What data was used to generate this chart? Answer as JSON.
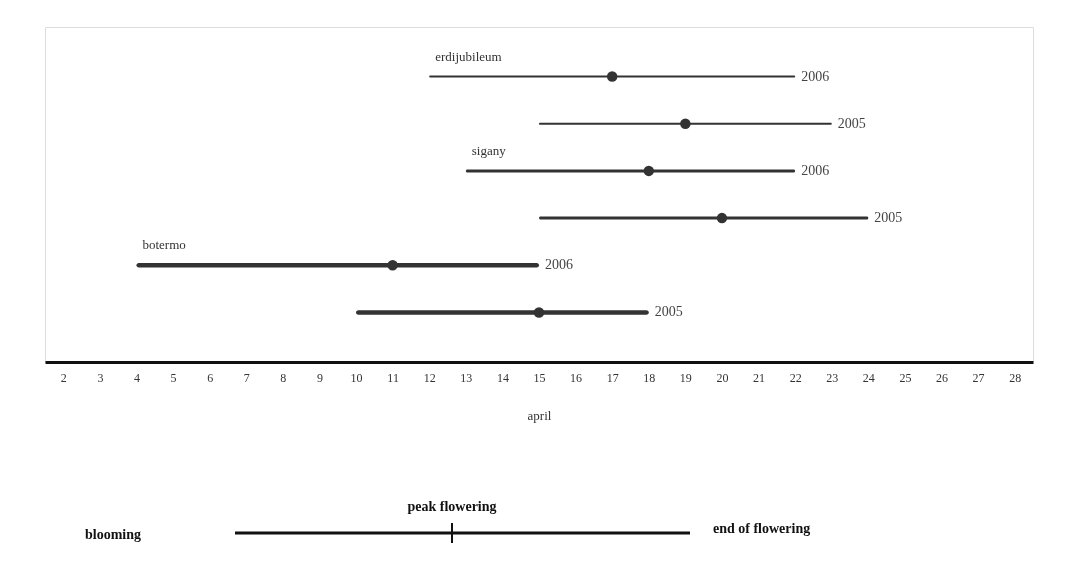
{
  "chart_data": {
    "type": "bar",
    "orientation": "horizontal",
    "xlabel": "april",
    "categories": [
      "2006",
      "2005",
      "2006",
      "2005",
      "2006",
      "2005"
    ],
    "series": [
      {
        "name": "erdijubileum",
        "color": "#333333",
        "values": [
          10,
          8,
          null,
          null,
          null,
          null
        ],
        "base": [
          12,
          15,
          null,
          null,
          null,
          null
        ]
      },
      {
        "name": "sigany",
        "color": "#333333",
        "values": [
          null,
          null,
          9,
          9,
          null,
          null
        ],
        "base": [
          null,
          null,
          13,
          15,
          null,
          null
        ]
      },
      {
        "name": "botermo",
        "color": "#333333",
        "values": [
          null,
          null,
          null,
          null,
          11,
          8
        ],
        "base": [
          null,
          null,
          null,
          null,
          4,
          10
        ]
      },
      {
        "type": "scatter",
        "color": "#333333",
        "values": [
          17,
          19,
          18,
          20,
          11,
          15
        ]
      }
    ],
    "marker": "circle",
    "xlim": [
      1.5,
      28.5
    ],
    "xticks": [
      2,
      3,
      4,
      5,
      6,
      7,
      8,
      9,
      10,
      11,
      12,
      13,
      14,
      15,
      16,
      17,
      18,
      19,
      20,
      21,
      22,
      23,
      24,
      25,
      26,
      27,
      28
    ],
    "annotations": [
      "blooming",
      "peak flowering",
      "end of flowering"
    ]
  }
}
